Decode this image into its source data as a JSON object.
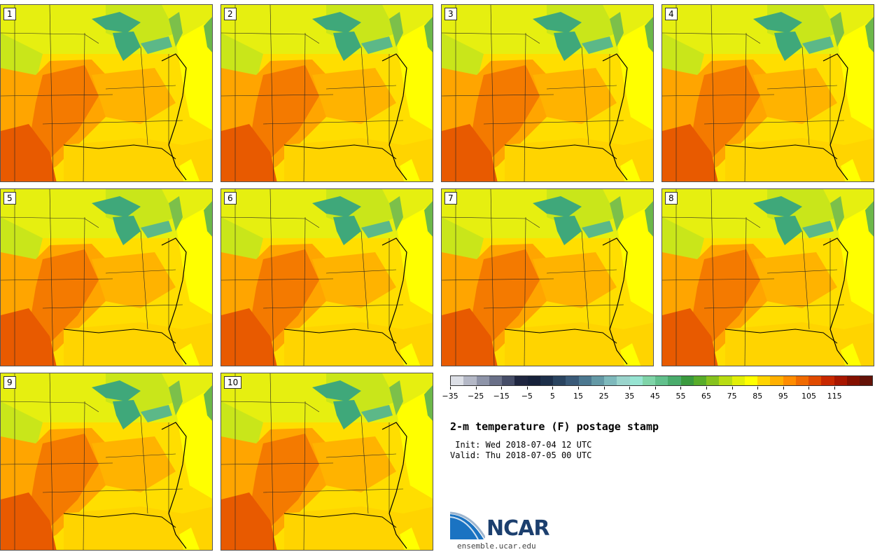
{
  "title": "2-m temperature (F) postage stamp",
  "init_line": " Init: Wed 2018-07-04 12 UTC",
  "valid_line": "Valid: Thu 2018-07-05 00 UTC",
  "org_name": "NCAR",
  "org_url": "ensemble.ucar.edu",
  "members": [
    "1",
    "2",
    "3",
    "4",
    "5",
    "6",
    "7",
    "8",
    "9",
    "10"
  ],
  "colorbar": {
    "unit": "F",
    "tick_labels": [
      "−35",
      "−25",
      "−15",
      "−5",
      "5",
      "15",
      "25",
      "35",
      "45",
      "55",
      "65",
      "75",
      "85",
      "95",
      "105",
      "115"
    ],
    "colors": [
      "#dcdfe6",
      "#b4b8c6",
      "#8e94a8",
      "#6a7088",
      "#464d68",
      "#1f2640",
      "#16213a",
      "#1d2f4a",
      "#2a4460",
      "#3a5a78",
      "#4c7890",
      "#6499a6",
      "#7eb9bc",
      "#9ad4cc",
      "#97e4d2",
      "#7fd4a8",
      "#62c08c",
      "#4aac6c",
      "#3a9a3e",
      "#58ac2a",
      "#86c21e",
      "#b8dc12",
      "#e2ef08",
      "#ffff00",
      "#ffd400",
      "#ffb000",
      "#ff8c00",
      "#f06a00",
      "#e04a00",
      "#c82800",
      "#a81600",
      "#841000",
      "#641208"
    ]
  }
}
